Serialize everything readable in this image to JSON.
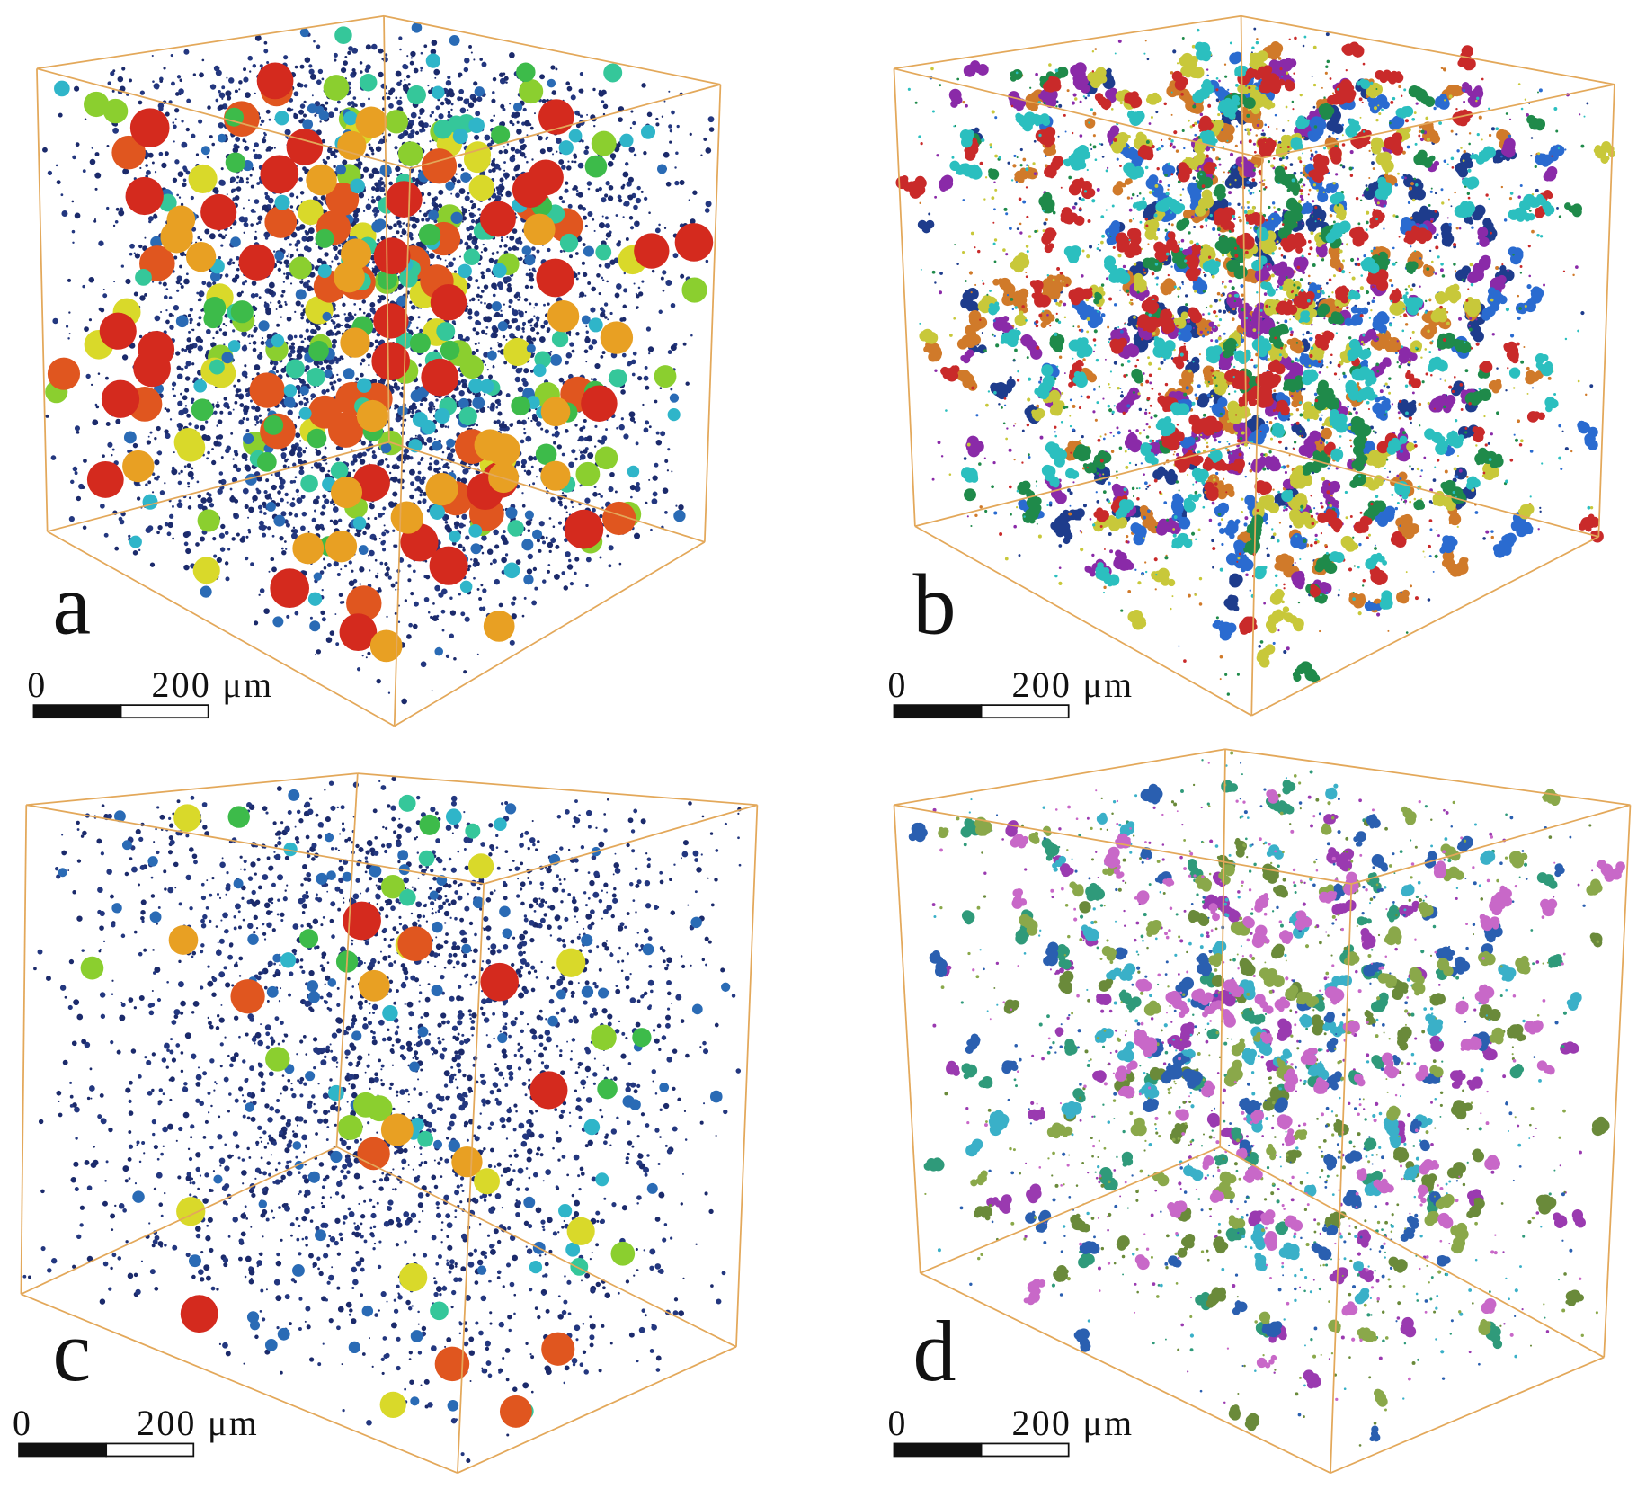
{
  "panels": [
    {
      "label": "a",
      "scale_start": "0",
      "scale_end": "200 μm"
    },
    {
      "label": "b",
      "scale_start": "0",
      "scale_end": "200 μm"
    },
    {
      "label": "c",
      "scale_start": "0",
      "scale_end": "200 μm"
    },
    {
      "label": "d",
      "scale_start": "0",
      "scale_end": "200 μm"
    }
  ]
}
